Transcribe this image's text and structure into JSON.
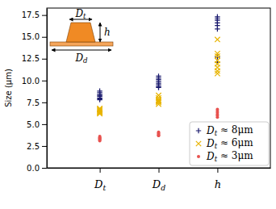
{
  "chart_data": {
    "type": "scatter",
    "y_label": "Size (μm)",
    "categories": [
      "Dt",
      "Dd",
      "h"
    ],
    "ylim": [
      0,
      18.3
    ],
    "yticks": [
      {
        "value": 0,
        "label": "0.0"
      },
      2.5,
      {
        "value": 5,
        "label": "5.0"
      },
      7.5,
      {
        "value": 10,
        "label": "10.0"
      },
      12.5,
      {
        "value": 15,
        "label": "15.0"
      },
      17.5
    ],
    "grid": false,
    "legend": "lower right",
    "annotations": [
      "Dt",
      "h",
      "Dd"
    ],
    "series": [
      {
        "name": "Dt ≈ 8μm",
        "color": "#1a1a6e",
        "marker": "plus",
        "values": [
          [
            8.8,
            8.6,
            8.4,
            8.3,
            8.2,
            8.0,
            7.9,
            7.8
          ],
          [
            10.5,
            10.3,
            10.1,
            9.9,
            9.7,
            9.5,
            9.3,
            9.2
          ],
          [
            17.3,
            17.1,
            16.9,
            16.6,
            16.3,
            15.9,
            12.7,
            12.1
          ]
        ]
      },
      {
        "name": "Dt ≈ 6μm",
        "color": "#e8b400",
        "marker": "x",
        "values": [
          [
            6.8,
            6.7,
            6.6,
            6.5,
            6.4,
            6.3,
            6.2
          ],
          [
            8.3,
            8.0,
            7.8,
            7.7,
            7.6,
            7.5,
            7.3
          ],
          [
            14.7,
            13.1,
            12.8,
            12.3,
            11.9,
            11.5,
            11.1,
            10.8
          ]
        ]
      },
      {
        "name": "Dt ≈ 3μm",
        "color": "#e8524f",
        "marker": "circle",
        "values": [
          [
            3.6,
            3.5,
            3.4,
            3.3,
            3.2,
            3.1
          ],
          [
            4.1,
            4.0,
            3.9,
            3.8,
            3.7,
            3.7
          ],
          [
            6.7,
            6.5,
            6.3,
            6.1,
            6.0,
            5.8
          ]
        ]
      }
    ]
  }
}
